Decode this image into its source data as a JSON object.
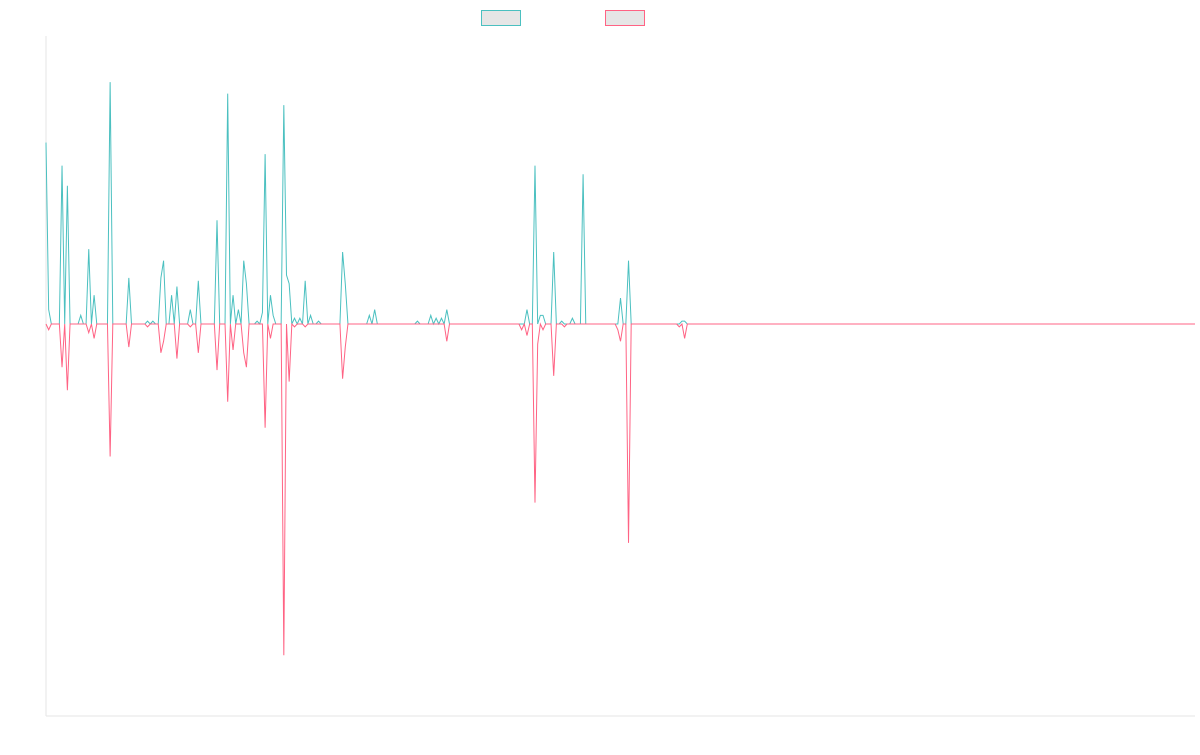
{
  "chart_data": {
    "type": "line",
    "title": "",
    "xlabel": "",
    "ylabel": "",
    "grid": false,
    "legend_position": "top-center",
    "ylim": [
      -100,
      100
    ],
    "series": [
      {
        "name": "",
        "color": "#4bc0c0",
        "fill": "#e6e6e6",
        "spikes": [
          [
            0,
            63
          ],
          [
            1,
            5
          ],
          [
            6,
            55
          ],
          [
            8,
            48
          ],
          [
            13,
            3
          ],
          [
            16,
            26
          ],
          [
            18,
            10
          ],
          [
            24,
            84
          ],
          [
            31,
            16
          ],
          [
            38,
            1
          ],
          [
            40,
            1
          ],
          [
            43,
            16
          ],
          [
            44,
            22
          ],
          [
            47,
            10
          ],
          [
            49,
            13
          ],
          [
            54,
            5
          ],
          [
            57,
            15
          ],
          [
            64,
            36
          ],
          [
            68,
            80
          ],
          [
            70,
            10
          ],
          [
            72,
            5
          ],
          [
            74,
            22
          ],
          [
            75,
            14
          ],
          [
            79,
            1
          ],
          [
            81,
            4
          ],
          [
            82,
            59
          ],
          [
            84,
            10
          ],
          [
            85,
            3
          ],
          [
            89,
            76
          ],
          [
            90,
            17
          ],
          [
            91,
            14
          ],
          [
            93,
            2
          ],
          [
            95,
            2
          ],
          [
            97,
            15
          ],
          [
            99,
            3
          ],
          [
            102,
            1
          ],
          [
            111,
            25
          ],
          [
            112,
            14
          ],
          [
            121,
            3
          ],
          [
            123,
            5
          ],
          [
            139,
            1
          ],
          [
            144,
            3
          ],
          [
            146,
            2
          ],
          [
            148,
            2
          ],
          [
            150,
            5
          ],
          [
            180,
            5
          ],
          [
            183,
            55
          ],
          [
            185,
            3
          ],
          [
            186,
            3
          ],
          [
            190,
            25
          ],
          [
            193,
            1
          ],
          [
            197,
            2
          ],
          [
            201,
            52
          ],
          [
            215,
            9
          ],
          [
            218,
            22
          ],
          [
            238,
            1
          ],
          [
            239,
            1
          ]
        ]
      },
      {
        "name": "",
        "color": "#ff6384",
        "fill": "#e6e6e6",
        "spikes": [
          [
            1,
            -2
          ],
          [
            6,
            -15
          ],
          [
            8,
            -23
          ],
          [
            16,
            -3
          ],
          [
            18,
            -5
          ],
          [
            24,
            -46
          ],
          [
            31,
            -8
          ],
          [
            38,
            -1
          ],
          [
            43,
            -10
          ],
          [
            44,
            -6
          ],
          [
            49,
            -12
          ],
          [
            54,
            -1
          ],
          [
            57,
            -10
          ],
          [
            64,
            -16
          ],
          [
            68,
            -27
          ],
          [
            70,
            -9
          ],
          [
            74,
            -10
          ],
          [
            75,
            -15
          ],
          [
            82,
            -36
          ],
          [
            84,
            -5
          ],
          [
            89,
            -115
          ],
          [
            91,
            -20
          ],
          [
            93,
            -1
          ],
          [
            97,
            -1
          ],
          [
            111,
            -19
          ],
          [
            112,
            -8
          ],
          [
            150,
            -6
          ],
          [
            178,
            -2
          ],
          [
            180,
            -4
          ],
          [
            183,
            -62
          ],
          [
            184,
            -7
          ],
          [
            186,
            -2
          ],
          [
            190,
            -18
          ],
          [
            194,
            -1
          ],
          [
            214,
            -2
          ],
          [
            215,
            -6
          ],
          [
            218,
            -76
          ],
          [
            237,
            -1
          ],
          [
            239,
            -5
          ]
        ]
      }
    ],
    "x_count": 431
  }
}
